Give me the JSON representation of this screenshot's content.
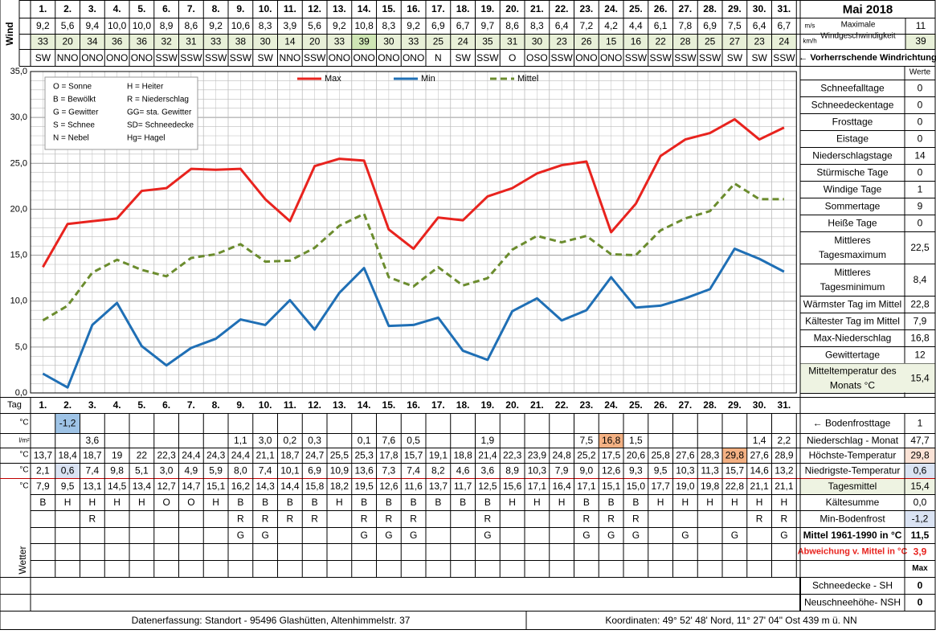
{
  "title": "Mai 2018",
  "days": [
    "1.",
    "2.",
    "3.",
    "4.",
    "5.",
    "6.",
    "7.",
    "8.",
    "9.",
    "10.",
    "11.",
    "12.",
    "13.",
    "14.",
    "15.",
    "16.",
    "17.",
    "18.",
    "19.",
    "20.",
    "21.",
    "22.",
    "23.",
    "24.",
    "25.",
    "26.",
    "27.",
    "28.",
    "29.",
    "30.",
    "31."
  ],
  "wind": {
    "label": "Wind",
    "unit_ms": "m/s",
    "unit_kmh": "km/h",
    "ms": [
      "9,2",
      "5,6",
      "9,4",
      "10,0",
      "10,0",
      "8,9",
      "8,6",
      "9,2",
      "10,6",
      "8,3",
      "3,9",
      "5,6",
      "9,2",
      "10,8",
      "8,3",
      "9,2",
      "6,9",
      "6,7",
      "9,7",
      "8,6",
      "8,3",
      "6,4",
      "7,2",
      "4,2",
      "4,4",
      "6,1",
      "7,8",
      "6,9",
      "7,5",
      "6,4",
      "6,7"
    ],
    "kmh": [
      "33",
      "20",
      "34",
      "36",
      "36",
      "32",
      "31",
      "33",
      "38",
      "30",
      "14",
      "20",
      "33",
      "39",
      "30",
      "33",
      "25",
      "24",
      "35",
      "31",
      "30",
      "23",
      "26",
      "15",
      "16",
      "22",
      "28",
      "25",
      "27",
      "23",
      "24"
    ],
    "dir": [
      "SW",
      "NNO",
      "ONO",
      "ONO",
      "ONO",
      "SSW",
      "SSW",
      "SSW",
      "SSW",
      "SW",
      "NNO",
      "SSW",
      "ONO",
      "ONO",
      "ONO",
      "ONO",
      "N",
      "SW",
      "SSW",
      "O",
      "OSO",
      "SSW",
      "ONO",
      "ONO",
      "SSW",
      "SSW",
      "SSW",
      "SSW",
      "SW",
      "SW",
      "SSW"
    ],
    "max_label": "Maximale Windgeschwindigkeit",
    "max_ms": "11",
    "max_kmh": "39",
    "dir_label": "← Vorherrschende Windrichtung",
    "highlight_color": "#cfe6b5",
    "bg_color": "#e8f0d8"
  },
  "legend_box": {
    "left": [
      "O = Sonne",
      "B = Bewölkt",
      "G = Gewitter",
      "S = Schnee",
      "N = Nebel"
    ],
    "right": [
      "H = Heiter",
      "R = Niederschlag",
      "GG= sta. Gewitter",
      "SD= Schneedecke",
      "Hg= Hagel"
    ]
  },
  "chart_data": {
    "type": "line",
    "x": [
      1,
      2,
      3,
      4,
      5,
      6,
      7,
      8,
      9,
      10,
      11,
      12,
      13,
      14,
      15,
      16,
      17,
      18,
      19,
      20,
      21,
      22,
      23,
      24,
      25,
      26,
      27,
      28,
      29,
      30,
      31
    ],
    "ylim": [
      0,
      35
    ],
    "yticks": [
      "0,0",
      "5,0",
      "10,0",
      "15,0",
      "20,0",
      "25,0",
      "30,0",
      "35,0"
    ],
    "series": [
      {
        "name": "Max",
        "color": "#e8231e",
        "dash": "none",
        "values": [
          13.7,
          18.4,
          18.7,
          19.0,
          22.0,
          22.3,
          24.4,
          24.3,
          24.4,
          21.1,
          18.7,
          24.7,
          25.5,
          25.3,
          17.8,
          15.7,
          19.1,
          18.8,
          21.4,
          22.3,
          23.9,
          24.8,
          25.2,
          17.5,
          20.6,
          25.8,
          27.6,
          28.3,
          29.8,
          27.6,
          28.9
        ]
      },
      {
        "name": "Min",
        "color": "#1f6fb5",
        "dash": "none",
        "values": [
          2.1,
          0.6,
          7.4,
          9.8,
          5.1,
          3.0,
          4.9,
          5.9,
          8.0,
          7.4,
          10.1,
          6.9,
          10.9,
          13.6,
          7.3,
          7.4,
          8.2,
          4.6,
          3.6,
          8.9,
          10.3,
          7.9,
          9.0,
          12.6,
          9.3,
          9.5,
          10.3,
          11.3,
          15.7,
          14.6,
          13.2
        ]
      },
      {
        "name": "Mittel",
        "color": "#6b8c2e",
        "dash": "8,5",
        "values": [
          7.9,
          9.5,
          13.1,
          14.5,
          13.4,
          12.7,
          14.7,
          15.1,
          16.2,
          14.3,
          14.4,
          15.8,
          18.2,
          19.5,
          12.6,
          11.6,
          13.7,
          11.7,
          12.5,
          15.6,
          17.1,
          16.4,
          17.1,
          15.1,
          15.0,
          17.7,
          19.0,
          19.8,
          22.8,
          21.1,
          21.1
        ]
      }
    ],
    "grid": true,
    "legend_placement": "top"
  },
  "stats": {
    "header": "Werte",
    "rows": [
      {
        "label": "Schneefalltage",
        "value": "0"
      },
      {
        "label": "Schneedeckentage",
        "value": "0"
      },
      {
        "label": "Frosttage",
        "value": "0"
      },
      {
        "label": "Eistage",
        "value": "0"
      },
      {
        "label": "Niederschlagstage",
        "value": "14"
      },
      {
        "label": "Stürmische Tage",
        "value": "0"
      },
      {
        "label": "Windige Tage",
        "value": "1"
      },
      {
        "label": "Sommertage",
        "value": "9"
      },
      {
        "label": "Heiße Tage",
        "value": "0"
      },
      {
        "label": "Mittleres Tagesmaximum",
        "value": "22,5"
      },
      {
        "label": "Mittleres Tagesminimum",
        "value": "8,4"
      },
      {
        "label": "Wärmster Tag im Mittel",
        "value": "22,8"
      },
      {
        "label": "Kältester Tag im Mittel",
        "value": "7,9"
      },
      {
        "label": "Max-Niederschlag",
        "value": "16,8"
      },
      {
        "label": "Gewittertage",
        "value": "12"
      },
      {
        "label": "Mitteltemperatur des Monats °C",
        "value": "15,4"
      }
    ]
  },
  "table": {
    "tag_label": "Tag",
    "unit_c": "°C",
    "unit_lm": "l/m²",
    "boden": [
      "",
      "-1,2",
      "",
      "",
      "",
      "",
      "",
      "",
      "",
      "",
      "",
      "",
      "",
      "",
      "",
      "",
      "",
      "",
      "",
      "",
      "",
      "",
      "",
      "",
      "",
      "",
      "",
      "",
      "",
      "",
      ""
    ],
    "niederschlag": [
      "",
      "",
      "3,6",
      "",
      "",
      "",
      "",
      "",
      "1,1",
      "3,0",
      "0,2",
      "0,3",
      "",
      "0,1",
      "7,6",
      "0,5",
      "",
      "",
      "1,9",
      "",
      "",
      "",
      "7,5",
      "16,8",
      "1,5",
      "",
      "",
      "",
      "",
      "1,4",
      "2,2"
    ],
    "hoechst": [
      "13,7",
      "18,4",
      "18,7",
      "19",
      "22",
      "22,3",
      "24,4",
      "24,3",
      "24,4",
      "21,1",
      "18,7",
      "24,7",
      "25,5",
      "25,3",
      "17,8",
      "15,7",
      "19,1",
      "18,8",
      "21,4",
      "22,3",
      "23,9",
      "24,8",
      "25,2",
      "17,5",
      "20,6",
      "25,8",
      "27,6",
      "28,3",
      "29,8",
      "27,6",
      "28,9"
    ],
    "niedrigst": [
      "2,1",
      "0,6",
      "7,4",
      "9,8",
      "5,1",
      "3,0",
      "4,9",
      "5,9",
      "8,0",
      "7,4",
      "10,1",
      "6,9",
      "10,9",
      "13,6",
      "7,3",
      "7,4",
      "8,2",
      "4,6",
      "3,6",
      "8,9",
      "10,3",
      "7,9",
      "9,0",
      "12,6",
      "9,3",
      "9,5",
      "10,3",
      "11,3",
      "15,7",
      "14,6",
      "13,2"
    ],
    "mittel": [
      "7,9",
      "9,5",
      "13,1",
      "14,5",
      "13,4",
      "12,7",
      "14,7",
      "15,1",
      "16,2",
      "14,3",
      "14,4",
      "15,8",
      "18,2",
      "19,5",
      "12,6",
      "11,6",
      "13,7",
      "11,7",
      "12,5",
      "15,6",
      "17,1",
      "16,4",
      "17,1",
      "15,1",
      "15,0",
      "17,7",
      "19,0",
      "19,8",
      "22,8",
      "21,1",
      "21,1"
    ],
    "wetter_label": "Wetter",
    "wetter1": [
      "B",
      "H",
      "H",
      "H",
      "H",
      "O",
      "O",
      "H",
      "B",
      "B",
      "B",
      "B",
      "H",
      "B",
      "B",
      "B",
      "B",
      "B",
      "B",
      "H",
      "H",
      "H",
      "B",
      "B",
      "B",
      "H",
      "H",
      "H",
      "H",
      "H",
      "H"
    ],
    "wetter2": [
      "",
      "",
      "R",
      "",
      "",
      "",
      "",
      "",
      "R",
      "R",
      "R",
      "R",
      "",
      "R",
      "R",
      "R",
      "",
      "",
      "R",
      "",
      "",
      "",
      "R",
      "R",
      "R",
      "",
      "",
      "",
      "",
      "R",
      "R"
    ],
    "wetter3": [
      "",
      "",
      "",
      "",
      "",
      "",
      "",
      "",
      "G",
      "G",
      "",
      "",
      "",
      "G",
      "G",
      "G",
      "",
      "",
      "G",
      "",
      "",
      "",
      "G",
      "G",
      "G",
      "",
      "G",
      "",
      "G",
      "",
      "G"
    ]
  },
  "bottom_stats": [
    {
      "label": "← Bodenfrosttage",
      "value": "1"
    },
    {
      "label": "Niederschlag - Monat",
      "value": "47,7"
    },
    {
      "label": "Höchste-Temperatur",
      "value": "29,8"
    },
    {
      "label": "Niedrigste-Temperatur",
      "value": "0,6"
    },
    {
      "label": "Tagesmittel",
      "value": "15,4"
    },
    {
      "label": "Kältesumme",
      "value": "0,0"
    },
    {
      "label": "Min-Bodenfrost",
      "value": "-1,2"
    },
    {
      "label": "Mittel 1961-1990 in °C",
      "value": "11,5"
    },
    {
      "label": "Abweichung v. Mittel in °C",
      "value": "3,9"
    },
    {
      "label": "",
      "value": "Max"
    },
    {
      "label": "Schneedecke -   SH",
      "value": "0"
    },
    {
      "label": "Neuschneehöhe- NSH",
      "value": "0"
    }
  ],
  "footer": {
    "left": "Datenerfassung:  Standort -  95496  Glashütten, Altenhimmelstr. 37",
    "right": "Koordinaten:  49° 52' 48' Nord,   11° 27' 04\" Ost   439 m ü. NN"
  },
  "colors": {
    "boden_hl": "#9ec3e6",
    "max_hl": "#f4b183",
    "minbl_hl": "#dae3f3",
    "warn_red": "#e8231e",
    "stats_bg": "#eef3e2",
    "grid": "#bcbcbc"
  }
}
